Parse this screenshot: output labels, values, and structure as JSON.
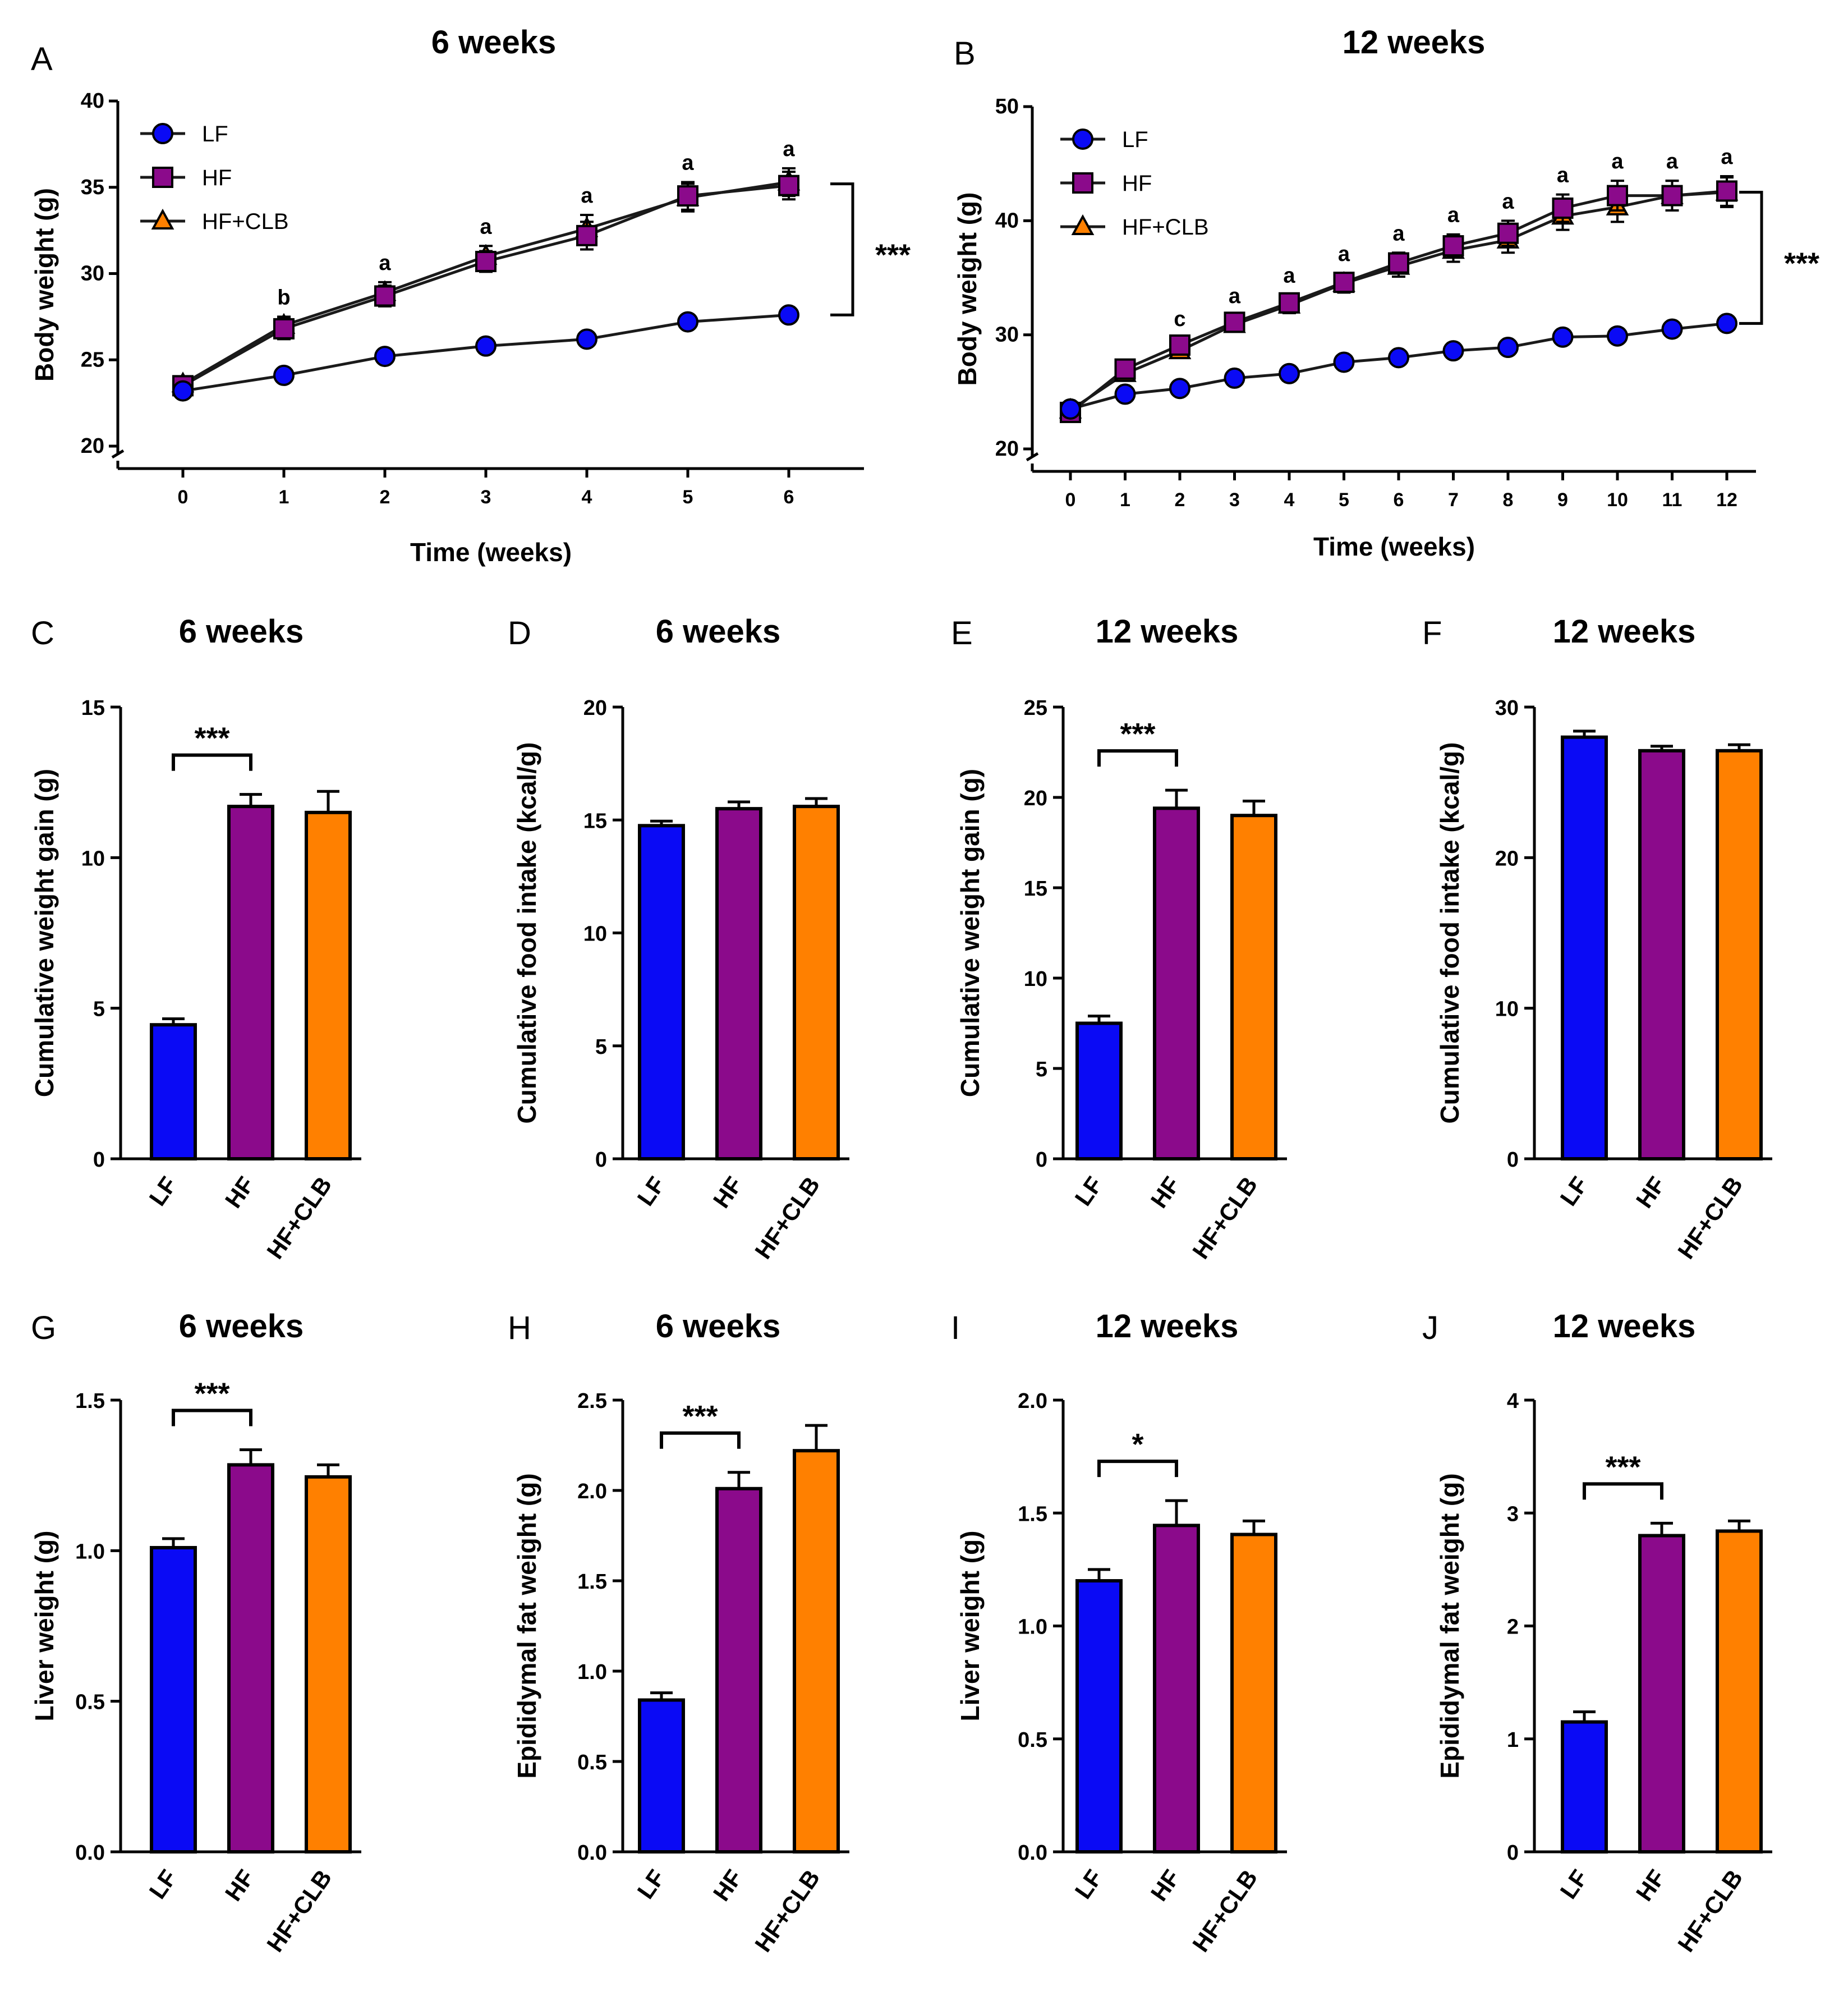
{
  "colors": {
    "LF": "#0a0af5",
    "HF": "#8b0a8b",
    "HF+CLB": "#ff8000",
    "axis": "#000000",
    "line": "#1a1a1a"
  },
  "chart_data": [
    {
      "panel": "A",
      "type": "line",
      "title": "6 weeks",
      "xlabel": "Time (weeks)",
      "ylabel": "Body weight (g)",
      "ylim": [
        20,
        40
      ],
      "yticks": [
        "20",
        "25",
        "30",
        "35",
        "40"
      ],
      "x": [
        0,
        1,
        2,
        3,
        4,
        5,
        6
      ],
      "xticks": [
        "0",
        "1",
        "2",
        "3",
        "4",
        "5",
        "6"
      ],
      "series": [
        {
          "name": "LF",
          "marker": "circle",
          "values": [
            23.2,
            24.1,
            25.2,
            25.8,
            26.2,
            27.2,
            27.6
          ],
          "err": [
            0.2,
            0.2,
            0.2,
            0.2,
            0.2,
            0.2,
            0.2
          ]
        },
        {
          "name": "HF",
          "marker": "square",
          "values": [
            23.5,
            26.8,
            28.7,
            30.7,
            32.2,
            34.5,
            35.1
          ],
          "err": [
            0.3,
            0.6,
            0.6,
            0.6,
            0.8,
            0.8,
            0.8
          ]
        },
        {
          "name": "HF+CLB",
          "marker": "triangle",
          "values": [
            23.6,
            27.0,
            28.9,
            31.0,
            32.6,
            34.4,
            35.3
          ],
          "err": [
            0.3,
            0.5,
            0.6,
            0.6,
            0.8,
            0.8,
            0.8
          ]
        }
      ],
      "point_annotations": [
        {
          "x": 1,
          "text": "b"
        },
        {
          "x": 2,
          "text": "a"
        },
        {
          "x": 3,
          "text": "a"
        },
        {
          "x": 4,
          "text": "a"
        },
        {
          "x": 5,
          "text": "a"
        },
        {
          "x": 6,
          "text": "a"
        }
      ],
      "bracket": {
        "from": 35.2,
        "to": 27.6,
        "label": "***"
      },
      "legend": [
        "LF",
        "HF",
        "HF+CLB"
      ],
      "legend_position": "top-left"
    },
    {
      "panel": "B",
      "type": "line",
      "title": "12 weeks",
      "xlabel": "Time (weeks)",
      "ylabel": "Body weight (g)",
      "ylim": [
        20,
        50
      ],
      "yticks": [
        "20",
        "30",
        "40",
        "50"
      ],
      "x": [
        0,
        1,
        2,
        3,
        4,
        5,
        6,
        7,
        8,
        9,
        10,
        11,
        12
      ],
      "xticks": [
        "0",
        "1",
        "2",
        "3",
        "4",
        "5",
        "6",
        "7",
        "8",
        "9",
        "10",
        "11",
        "12"
      ],
      "series": [
        {
          "name": "LF",
          "marker": "circle",
          "values": [
            23.5,
            24.8,
            25.3,
            26.2,
            26.6,
            27.6,
            28.0,
            28.6,
            28.9,
            29.8,
            29.9,
            30.5,
            31.0
          ],
          "err": [
            0.3,
            0.3,
            0.3,
            0.3,
            0.3,
            0.4,
            0.4,
            0.4,
            0.4,
            0.5,
            0.5,
            0.5,
            0.5
          ]
        },
        {
          "name": "HF",
          "marker": "square",
          "values": [
            23.2,
            27.0,
            29.1,
            31.1,
            32.8,
            34.6,
            36.3,
            37.8,
            38.9,
            41.1,
            42.2,
            42.2,
            42.6
          ],
          "err": [
            0.3,
            0.5,
            0.6,
            0.6,
            0.7,
            0.8,
            0.9,
            1.0,
            1.1,
            1.2,
            1.3,
            1.3,
            1.3
          ]
        },
        {
          "name": "HF+CLB",
          "marker": "triangle",
          "values": [
            23.4,
            26.6,
            28.6,
            30.9,
            32.6,
            34.5,
            36.0,
            37.4,
            38.3,
            40.4,
            41.2,
            42.2,
            42.5
          ],
          "err": [
            0.3,
            0.5,
            0.6,
            0.6,
            0.7,
            0.8,
            0.9,
            1.0,
            1.1,
            1.2,
            1.3,
            1.3,
            1.3
          ]
        }
      ],
      "point_annotations": [
        {
          "x": 2,
          "text": "c"
        },
        {
          "x": 3,
          "text": "a"
        },
        {
          "x": 4,
          "text": "a"
        },
        {
          "x": 5,
          "text": "a"
        },
        {
          "x": 6,
          "text": "a"
        },
        {
          "x": 7,
          "text": "a"
        },
        {
          "x": 8,
          "text": "a"
        },
        {
          "x": 9,
          "text": "a"
        },
        {
          "x": 10,
          "text": "a"
        },
        {
          "x": 11,
          "text": "a"
        },
        {
          "x": 12,
          "text": "a"
        }
      ],
      "bracket": {
        "from": 42.5,
        "to": 31.0,
        "label": "***"
      },
      "legend": [
        "LF",
        "HF",
        "HF+CLB"
      ],
      "legend_position": "top-left"
    },
    {
      "panel": "C",
      "type": "bar",
      "title": "6 weeks",
      "ylabel": "Cumulative weight gain (g)",
      "ylim": [
        0,
        15
      ],
      "yticks": [
        "0",
        "5",
        "10",
        "15"
      ],
      "categories": [
        "LF",
        "HF",
        "HF+CLB"
      ],
      "values": [
        4.45,
        11.7,
        11.5
      ],
      "err": [
        0.2,
        0.4,
        0.7
      ],
      "significance": {
        "between": [
          "LF",
          "HF"
        ],
        "label": "***"
      }
    },
    {
      "panel": "D",
      "type": "bar",
      "title": "6 weeks",
      "ylabel": "Cumulative food intake (kcal/g)",
      "ylim": [
        0,
        20
      ],
      "yticks": [
        "0",
        "5",
        "10",
        "15",
        "20"
      ],
      "categories": [
        "LF",
        "HF",
        "HF+CLB"
      ],
      "values": [
        14.75,
        15.5,
        15.6
      ],
      "err": [
        0.2,
        0.3,
        0.35
      ]
    },
    {
      "panel": "E",
      "type": "bar",
      "title": "12 weeks",
      "ylabel": "Cumulative weight gain (g)",
      "ylim": [
        0,
        25
      ],
      "yticks": [
        "0",
        "5",
        "10",
        "15",
        "20",
        "25"
      ],
      "categories": [
        "LF",
        "HF",
        "HF+CLB"
      ],
      "values": [
        7.5,
        19.4,
        19.0
      ],
      "err": [
        0.4,
        1.0,
        0.8
      ],
      "significance": {
        "between": [
          "LF",
          "HF"
        ],
        "label": "***"
      }
    },
    {
      "panel": "F",
      "type": "bar",
      "title": "12 weeks",
      "ylabel": "Cumulative food intake (kcal/g)",
      "ylim": [
        0,
        30
      ],
      "yticks": [
        "0",
        "10",
        "20",
        "30"
      ],
      "categories": [
        "LF",
        "HF",
        "HF+CLB"
      ],
      "values": [
        28.0,
        27.1,
        27.1
      ],
      "err": [
        0.4,
        0.3,
        0.4
      ]
    },
    {
      "panel": "G",
      "type": "bar",
      "title": "6 weeks",
      "ylabel": "Liver weight (g)",
      "ylim": [
        0,
        1.5
      ],
      "yticks": [
        "0.0",
        "0.5",
        "1.0",
        "1.5"
      ],
      "categories": [
        "LF",
        "HF",
        "HF+CLB"
      ],
      "values": [
        1.01,
        1.285,
        1.245
      ],
      "err": [
        0.03,
        0.05,
        0.04
      ],
      "significance": {
        "between": [
          "LF",
          "HF"
        ],
        "label": "***"
      }
    },
    {
      "panel": "H",
      "type": "bar",
      "title": "6 weeks",
      "ylabel": "Epididymal fat weight (g)",
      "ylim": [
        0,
        2.5
      ],
      "yticks": [
        "0.0",
        "0.5",
        "1.0",
        "1.5",
        "2.0",
        "2.5"
      ],
      "categories": [
        "LF",
        "HF",
        "HF+CLB"
      ],
      "values": [
        0.84,
        2.01,
        2.22
      ],
      "err": [
        0.04,
        0.09,
        0.14
      ],
      "significance": {
        "between": [
          "LF",
          "HF"
        ],
        "label": "***"
      }
    },
    {
      "panel": "I",
      "type": "bar",
      "title": "12 weeks",
      "ylabel": "Liver weight (g)",
      "ylim": [
        0,
        2.0
      ],
      "yticks": [
        "0.0",
        "0.5",
        "1.0",
        "1.5",
        "2.0"
      ],
      "categories": [
        "LF",
        "HF",
        "HF+CLB"
      ],
      "values": [
        1.2,
        1.445,
        1.405
      ],
      "err": [
        0.05,
        0.11,
        0.06
      ],
      "significance": {
        "between": [
          "LF",
          "HF"
        ],
        "label": "*"
      }
    },
    {
      "panel": "J",
      "type": "bar",
      "title": "12 weeks",
      "ylabel": "Epididymal fat weight (g)",
      "ylim": [
        0,
        4
      ],
      "yticks": [
        "0",
        "1",
        "2",
        "3",
        "4"
      ],
      "categories": [
        "LF",
        "HF",
        "HF+CLB"
      ],
      "values": [
        1.15,
        2.8,
        2.84
      ],
      "err": [
        0.09,
        0.11,
        0.09
      ],
      "significance": {
        "between": [
          "LF",
          "HF"
        ],
        "label": "***"
      }
    }
  ]
}
